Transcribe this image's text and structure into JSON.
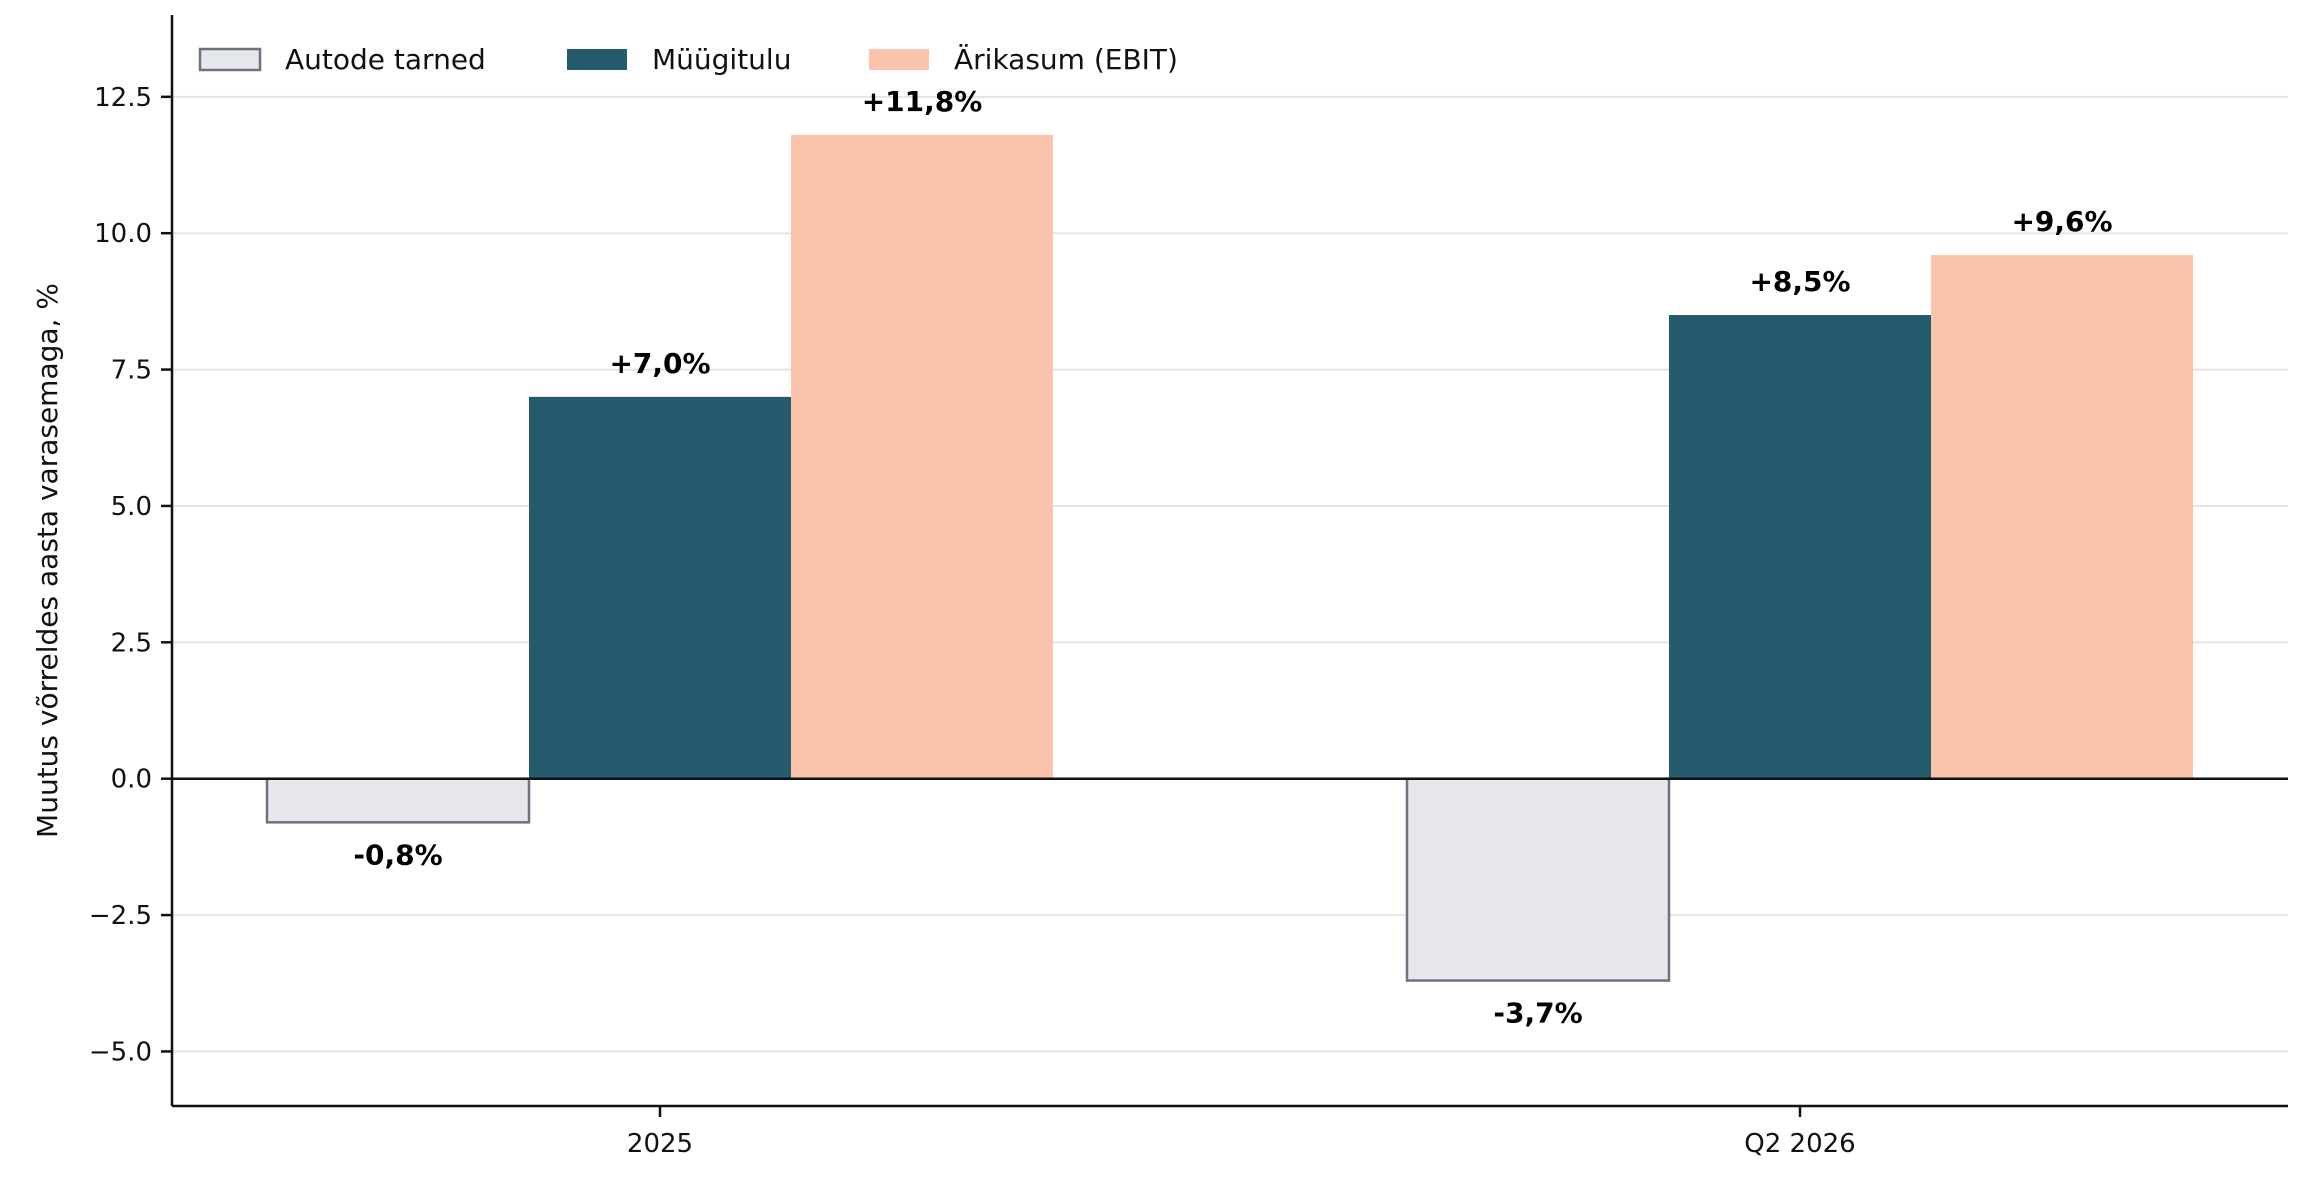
{
  "chart_data": {
    "type": "bar",
    "categories": [
      "2025",
      "Q2 2026"
    ],
    "series": [
      {
        "name": "Autode tarned",
        "values": [
          -0.8,
          -3.7
        ],
        "labels": [
          "-0,8%",
          "-3,7%"
        ],
        "color": "#e5e7eb",
        "edge_color": "#6b7280"
      },
      {
        "name": "Müügitulu",
        "values": [
          7.0,
          8.5
        ],
        "labels": [
          "+7,0%",
          "+8,5%"
        ],
        "color": "#245b6d"
      },
      {
        "name": "Ärikasum (EBIT)",
        "values": [
          11.8,
          9.6
        ],
        "labels": [
          "+11,8%",
          "+9,6%"
        ],
        "color": "#f9c4ab"
      }
    ],
    "ylabel": "Muutus võrreldes aasta varasemaga, %",
    "xlabel": "",
    "ylim": [
      -6,
      14
    ],
    "yticks": [
      -5.0,
      -2.5,
      0.0,
      2.5,
      5.0,
      7.5,
      10.0,
      12.5
    ],
    "ytick_labels": [
      "−5.0",
      "−2.5",
      "0.0",
      "2.5",
      "5.0",
      "7.5",
      "10.0",
      "12.5"
    ],
    "grid": "horizontal",
    "legend_position": "top-left"
  }
}
